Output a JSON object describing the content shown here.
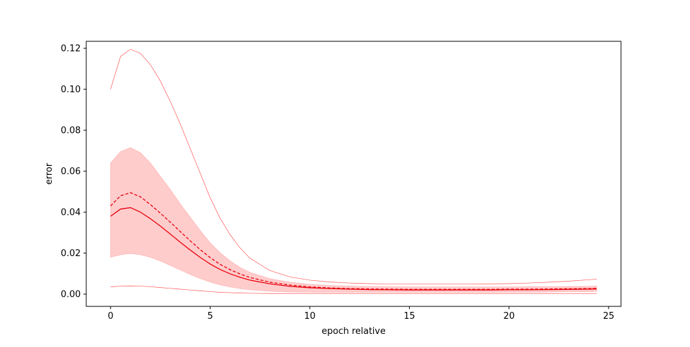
{
  "chart_data": {
    "type": "line",
    "title": "",
    "xlabel": "epoch relative",
    "ylabel": "error",
    "xlim": [
      -1.22,
      25.62
    ],
    "ylim": [
      -0.006,
      0.1234
    ],
    "x_ticks": [
      0,
      5,
      10,
      15,
      20,
      25
    ],
    "y_ticks": [
      0.0,
      0.02,
      0.04,
      0.06,
      0.08,
      0.1,
      0.12
    ],
    "x_tick_labels": [
      "0",
      "5",
      "10",
      "15",
      "20",
      "25"
    ],
    "y_tick_labels": [
      "0.00",
      "0.02",
      "0.04",
      "0.06",
      "0.08",
      "0.10",
      "0.12"
    ],
    "grid": false,
    "x": [
      0,
      0.5,
      1,
      1.5,
      2,
      2.5,
      3,
      3.5,
      4,
      4.5,
      5,
      5.5,
      6,
      6.5,
      7,
      8,
      9,
      10,
      11,
      12,
      13,
      14,
      15,
      16,
      17,
      18,
      19,
      20,
      21,
      22,
      23,
      24,
      24.4
    ],
    "series": [
      {
        "style": "solid",
        "color": "#e8000b",
        "values": [
          0.038,
          0.0415,
          0.0422,
          0.04,
          0.0368,
          0.0332,
          0.0293,
          0.0253,
          0.0215,
          0.0179,
          0.0147,
          0.012,
          0.0099,
          0.0082,
          0.0068,
          0.005,
          0.0038,
          0.0031,
          0.0027,
          0.0024,
          0.0022,
          0.0021,
          0.002,
          0.002,
          0.002,
          0.002,
          0.002,
          0.0021,
          0.0021,
          0.0022,
          0.0023,
          0.0024,
          0.0025
        ]
      },
      {
        "style": "dashed",
        "color": "#e8000b",
        "values": [
          0.043,
          0.048,
          0.0495,
          0.0475,
          0.0437,
          0.0395,
          0.0351,
          0.0305,
          0.026,
          0.0217,
          0.0178,
          0.0145,
          0.0119,
          0.0098,
          0.0081,
          0.0058,
          0.0044,
          0.0035,
          0.003,
          0.0027,
          0.0025,
          0.0024,
          0.0023,
          0.0023,
          0.0023,
          0.0023,
          0.0023,
          0.0024,
          0.0024,
          0.0025,
          0.0026,
          0.0027,
          0.0028
        ]
      }
    ],
    "band": {
      "color": "#ff9999",
      "opacity": 0.5,
      "upper": [
        0.064,
        0.0695,
        0.0715,
        0.069,
        0.064,
        0.0575,
        0.051,
        0.044,
        0.0375,
        0.031,
        0.025,
        0.0202,
        0.0162,
        0.013,
        0.0106,
        0.0075,
        0.0058,
        0.0048,
        0.0042,
        0.0039,
        0.0037,
        0.0036,
        0.0035,
        0.0035,
        0.0035,
        0.0035,
        0.0035,
        0.0035,
        0.0036,
        0.0036,
        0.0037,
        0.0038,
        0.0039
      ],
      "lower": [
        0.018,
        0.0192,
        0.0198,
        0.0192,
        0.018,
        0.0162,
        0.014,
        0.0118,
        0.0096,
        0.0076,
        0.0059,
        0.0045,
        0.0035,
        0.0027,
        0.0021,
        0.0014,
        0.001,
        0.0009,
        0.0008,
        0.0008,
        0.0008,
        0.0008,
        0.0008,
        0.0008,
        0.0008,
        0.0008,
        0.0008,
        0.0009,
        0.0009,
        0.001,
        0.0011,
        0.0012,
        0.0013
      ]
    },
    "envelope": {
      "color": "#ff5555",
      "max": [
        0.1,
        0.116,
        0.1195,
        0.1175,
        0.112,
        0.104,
        0.094,
        0.083,
        0.071,
        0.059,
        0.047,
        0.037,
        0.029,
        0.0225,
        0.0175,
        0.0115,
        0.0084,
        0.0068,
        0.0059,
        0.0054,
        0.0051,
        0.0049,
        0.0049,
        0.0049,
        0.0049,
        0.0049,
        0.005,
        0.0051,
        0.0054,
        0.0058,
        0.0063,
        0.007,
        0.0073
      ],
      "min": [
        0.0035,
        0.0039,
        0.004,
        0.0039,
        0.0036,
        0.0032,
        0.0028,
        0.0024,
        0.002,
        0.0016,
        0.0012,
        0.0009,
        0.0007,
        0.0005,
        0.0004,
        0.0003,
        0.0002,
        0.0002,
        0.0002,
        0.0002,
        0.0002,
        0.0002,
        0.0002,
        0.0002,
        0.0002,
        0.0002,
        0.0002,
        0.0002,
        0.0002,
        0.0002,
        0.0002,
        0.0002,
        0.0002
      ]
    }
  }
}
